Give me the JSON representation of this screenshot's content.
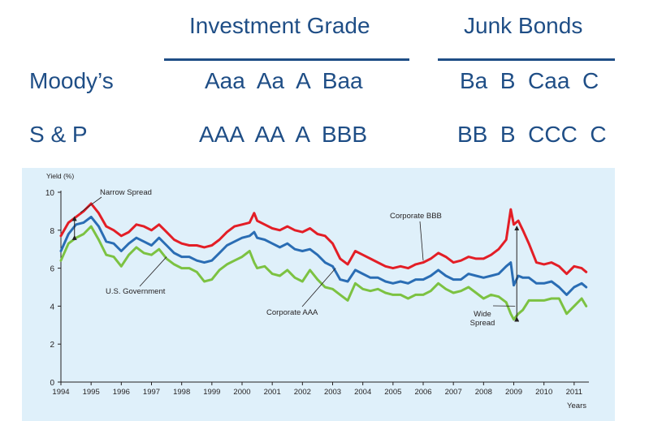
{
  "header": {
    "investment_grade": "Investment Grade",
    "junk_bonds": "Junk Bonds",
    "moodys_label": "Moody’s",
    "moodys_investment": "Aaa  Aa  A  Baa",
    "moodys_junk": "Ba  B  Caa  C",
    "sp_label": "S & P",
    "sp_investment": "AAA  AA  A  BBB",
    "sp_junk": "BB  B  CCC  C"
  },
  "colors": {
    "background_panel": "#dff0fa",
    "header_text": "#1f4e86",
    "corporate_bbb": "#e31e26",
    "corporate_aaa": "#2a6db4",
    "us_government": "#7cc242"
  },
  "chart_data": {
    "type": "line",
    "ylabel": "Yield (%)",
    "xlabel": "Years",
    "xlim": [
      1994,
      2011.5
    ],
    "ylim": [
      0,
      10
    ],
    "x_ticks": [
      "1994",
      "1995",
      "1996",
      "1997",
      "1998",
      "1999",
      "2000",
      "2001",
      "2002",
      "2003",
      "2004",
      "2005",
      "2006",
      "2007",
      "2008",
      "2009",
      "2010",
      "2011"
    ],
    "y_ticks": [
      "0",
      "2",
      "4",
      "6",
      "8",
      "10"
    ],
    "grid": false,
    "series": [
      {
        "name": "Corporate BBB",
        "color": "#e31e26",
        "x": [
          1994.0,
          1994.25,
          1994.5,
          1994.75,
          1995.0,
          1995.25,
          1995.5,
          1995.75,
          1996.0,
          1996.25,
          1996.5,
          1996.75,
          1997.0,
          1997.25,
          1997.5,
          1997.75,
          1998.0,
          1998.25,
          1998.5,
          1998.75,
          1999.0,
          1999.25,
          1999.5,
          1999.75,
          2000.0,
          2000.25,
          2000.4,
          2000.5,
          2000.75,
          2001.0,
          2001.25,
          2001.5,
          2001.75,
          2002.0,
          2002.25,
          2002.5,
          2002.75,
          2003.0,
          2003.25,
          2003.5,
          2003.75,
          2004.0,
          2004.25,
          2004.5,
          2004.75,
          2005.0,
          2005.25,
          2005.5,
          2005.75,
          2006.0,
          2006.25,
          2006.5,
          2006.75,
          2007.0,
          2007.25,
          2007.5,
          2007.75,
          2008.0,
          2008.25,
          2008.5,
          2008.75,
          2008.9,
          2009.0,
          2009.15,
          2009.3,
          2009.5,
          2009.75,
          2010.0,
          2010.25,
          2010.5,
          2010.75,
          2011.0,
          2011.25,
          2011.4
        ],
        "y": [
          7.7,
          8.4,
          8.7,
          9.0,
          9.4,
          8.9,
          8.2,
          8.0,
          7.7,
          7.9,
          8.3,
          8.2,
          8.0,
          8.3,
          7.9,
          7.5,
          7.3,
          7.2,
          7.2,
          7.1,
          7.2,
          7.5,
          7.9,
          8.2,
          8.3,
          8.4,
          8.9,
          8.5,
          8.3,
          8.1,
          8.0,
          8.2,
          8.0,
          7.9,
          8.1,
          7.8,
          7.7,
          7.3,
          6.5,
          6.2,
          6.9,
          6.7,
          6.5,
          6.3,
          6.1,
          6.0,
          6.1,
          6.0,
          6.2,
          6.3,
          6.5,
          6.8,
          6.6,
          6.3,
          6.4,
          6.6,
          6.5,
          6.5,
          6.7,
          7.0,
          7.5,
          9.1,
          8.3,
          8.5,
          8.0,
          7.3,
          6.3,
          6.2,
          6.3,
          6.1,
          5.7,
          6.1,
          6.0,
          5.8
        ]
      },
      {
        "name": "Corporate AAA",
        "color": "#2a6db4",
        "x": [
          1994.0,
          1994.25,
          1994.5,
          1994.75,
          1995.0,
          1995.25,
          1995.5,
          1995.75,
          1996.0,
          1996.25,
          1996.5,
          1996.75,
          1997.0,
          1997.25,
          1997.5,
          1997.75,
          1998.0,
          1998.25,
          1998.5,
          1998.75,
          1999.0,
          1999.25,
          1999.5,
          1999.75,
          2000.0,
          2000.25,
          2000.4,
          2000.5,
          2000.75,
          2001.0,
          2001.25,
          2001.5,
          2001.75,
          2002.0,
          2002.25,
          2002.5,
          2002.75,
          2003.0,
          2003.25,
          2003.5,
          2003.75,
          2004.0,
          2004.25,
          2004.5,
          2004.75,
          2005.0,
          2005.25,
          2005.5,
          2005.75,
          2006.0,
          2006.25,
          2006.5,
          2006.75,
          2007.0,
          2007.25,
          2007.5,
          2007.75,
          2008.0,
          2008.25,
          2008.5,
          2008.75,
          2008.9,
          2009.0,
          2009.15,
          2009.3,
          2009.5,
          2009.75,
          2010.0,
          2010.25,
          2010.5,
          2010.75,
          2011.0,
          2011.25,
          2011.4
        ],
        "y": [
          6.9,
          7.8,
          8.3,
          8.4,
          8.7,
          8.2,
          7.4,
          7.3,
          6.9,
          7.3,
          7.6,
          7.4,
          7.2,
          7.6,
          7.2,
          6.8,
          6.6,
          6.6,
          6.4,
          6.3,
          6.4,
          6.8,
          7.2,
          7.4,
          7.6,
          7.7,
          7.9,
          7.6,
          7.5,
          7.3,
          7.1,
          7.3,
          7.0,
          6.9,
          7.0,
          6.7,
          6.3,
          6.1,
          5.4,
          5.3,
          5.9,
          5.7,
          5.5,
          5.5,
          5.3,
          5.2,
          5.3,
          5.2,
          5.4,
          5.4,
          5.6,
          5.9,
          5.6,
          5.4,
          5.4,
          5.7,
          5.6,
          5.5,
          5.6,
          5.7,
          6.1,
          6.3,
          5.1,
          5.6,
          5.5,
          5.5,
          5.2,
          5.2,
          5.3,
          5.0,
          4.6,
          5.0,
          5.2,
          5.0
        ]
      },
      {
        "name": "U.S. Government",
        "color": "#7cc242",
        "x": [
          1994.0,
          1994.25,
          1994.5,
          1994.75,
          1995.0,
          1995.25,
          1995.5,
          1995.75,
          1996.0,
          1996.25,
          1996.5,
          1996.75,
          1997.0,
          1997.25,
          1997.5,
          1997.75,
          1998.0,
          1998.25,
          1998.5,
          1998.75,
          1999.0,
          1999.25,
          1999.5,
          1999.75,
          2000.0,
          2000.25,
          2000.4,
          2000.5,
          2000.75,
          2001.0,
          2001.25,
          2001.5,
          2001.75,
          2002.0,
          2002.25,
          2002.5,
          2002.75,
          2003.0,
          2003.25,
          2003.5,
          2003.75,
          2004.0,
          2004.25,
          2004.5,
          2004.75,
          2005.0,
          2005.25,
          2005.5,
          2005.75,
          2006.0,
          2006.25,
          2006.5,
          2006.75,
          2007.0,
          2007.25,
          2007.5,
          2007.75,
          2008.0,
          2008.25,
          2008.5,
          2008.75,
          2008.9,
          2009.0,
          2009.15,
          2009.3,
          2009.5,
          2009.75,
          2010.0,
          2010.25,
          2010.5,
          2010.75,
          2011.0,
          2011.25,
          2011.4
        ],
        "y": [
          6.4,
          7.3,
          7.6,
          7.8,
          8.2,
          7.5,
          6.7,
          6.6,
          6.1,
          6.7,
          7.1,
          6.8,
          6.7,
          7.0,
          6.5,
          6.2,
          6.0,
          6.0,
          5.8,
          5.3,
          5.4,
          5.9,
          6.2,
          6.4,
          6.6,
          6.9,
          6.3,
          6.0,
          6.1,
          5.7,
          5.6,
          5.9,
          5.5,
          5.3,
          5.9,
          5.4,
          5.0,
          4.9,
          4.6,
          4.3,
          5.2,
          4.9,
          4.8,
          4.9,
          4.7,
          4.6,
          4.6,
          4.4,
          4.6,
          4.6,
          4.8,
          5.2,
          4.9,
          4.7,
          4.8,
          5.0,
          4.7,
          4.4,
          4.6,
          4.5,
          4.2,
          3.6,
          3.3,
          3.6,
          3.8,
          4.3,
          4.3,
          4.3,
          4.4,
          4.4,
          3.6,
          4.0,
          4.4,
          4.0
        ]
      }
    ],
    "annotations": [
      {
        "text": "Narrow Spread"
      },
      {
        "text": "Corporate BBB"
      },
      {
        "text": "U.S. Government"
      },
      {
        "text": "Corporate AAA"
      },
      {
        "text": "Wide Spread",
        "lines": [
          "Wide",
          "Spread"
        ]
      }
    ]
  }
}
